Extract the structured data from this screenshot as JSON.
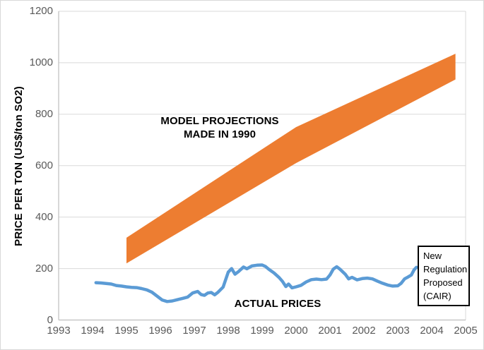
{
  "chart_data": {
    "type": "line",
    "y_axis_title": "PRICE PER TON (US$/ton SO2)",
    "xlim": [
      1993,
      2005
    ],
    "ylim": [
      0,
      1200
    ],
    "x_ticks": [
      1993,
      1994,
      1995,
      1996,
      1997,
      1998,
      1999,
      2000,
      2001,
      2002,
      2003,
      2004,
      2005
    ],
    "y_ticks": [
      0,
      200,
      400,
      600,
      800,
      1000,
      1200
    ],
    "grid": "horizontal",
    "legend": "none",
    "series": [
      {
        "name": "MODEL PROJECTIONS MADE IN 1990",
        "type": "band",
        "color": "#ED7D31",
        "x": [
          1995,
          2000,
          2004.7
        ],
        "upper": [
          320,
          750,
          1035
        ],
        "lower": [
          220,
          610,
          935
        ]
      },
      {
        "name": "ACTUAL PRICES",
        "type": "line",
        "color": "#5B9BD5",
        "stroke_width": 4.5,
        "points": [
          [
            1994.1,
            145
          ],
          [
            1994.25,
            144
          ],
          [
            1994.4,
            142
          ],
          [
            1994.55,
            140
          ],
          [
            1994.7,
            134
          ],
          [
            1994.85,
            132
          ],
          [
            1995.0,
            129
          ],
          [
            1995.15,
            127
          ],
          [
            1995.3,
            126
          ],
          [
            1995.45,
            122
          ],
          [
            1995.6,
            117
          ],
          [
            1995.75,
            108
          ],
          [
            1995.9,
            93
          ],
          [
            1996.05,
            78
          ],
          [
            1996.2,
            72
          ],
          [
            1996.35,
            74
          ],
          [
            1996.5,
            79
          ],
          [
            1996.65,
            84
          ],
          [
            1996.8,
            89
          ],
          [
            1996.95,
            105
          ],
          [
            1997.1,
            111
          ],
          [
            1997.2,
            99
          ],
          [
            1997.3,
            96
          ],
          [
            1997.4,
            105
          ],
          [
            1997.5,
            107
          ],
          [
            1997.6,
            98
          ],
          [
            1997.7,
            108
          ],
          [
            1997.85,
            128
          ],
          [
            1998.0,
            186
          ],
          [
            1998.1,
            200
          ],
          [
            1998.2,
            178
          ],
          [
            1998.3,
            188
          ],
          [
            1998.45,
            206
          ],
          [
            1998.55,
            199
          ],
          [
            1998.7,
            210
          ],
          [
            1998.85,
            213
          ],
          [
            1999.0,
            214
          ],
          [
            1999.1,
            208
          ],
          [
            1999.2,
            197
          ],
          [
            1999.35,
            183
          ],
          [
            1999.5,
            165
          ],
          [
            1999.6,
            150
          ],
          [
            1999.7,
            130
          ],
          [
            1999.78,
            140
          ],
          [
            1999.88,
            125
          ],
          [
            2000.0,
            129
          ],
          [
            2000.15,
            135
          ],
          [
            2000.3,
            148
          ],
          [
            2000.45,
            157
          ],
          [
            2000.6,
            159
          ],
          [
            2000.75,
            157
          ],
          [
            2000.9,
            159
          ],
          [
            2001.0,
            175
          ],
          [
            2001.1,
            198
          ],
          [
            2001.2,
            207
          ],
          [
            2001.3,
            197
          ],
          [
            2001.45,
            178
          ],
          [
            2001.55,
            160
          ],
          [
            2001.65,
            166
          ],
          [
            2001.8,
            156
          ],
          [
            2001.95,
            161
          ],
          [
            2002.1,
            163
          ],
          [
            2002.25,
            160
          ],
          [
            2002.4,
            151
          ],
          [
            2002.55,
            143
          ],
          [
            2002.7,
            136
          ],
          [
            2002.85,
            132
          ],
          [
            2003.0,
            133
          ],
          [
            2003.1,
            143
          ],
          [
            2003.2,
            160
          ],
          [
            2003.3,
            167
          ],
          [
            2003.4,
            175
          ],
          [
            2003.48,
            195
          ],
          [
            2003.55,
            205
          ]
        ]
      }
    ],
    "annotations": {
      "model_projections": {
        "line1": "MODEL PROJECTIONS",
        "line2": "MADE IN 1990"
      },
      "actual_prices": {
        "text": "ACTUAL PRICES"
      },
      "callout": {
        "lines": [
          "New",
          "Regulation",
          "Proposed",
          "(CAIR)"
        ]
      }
    },
    "colors": {
      "band": "#ED7D31",
      "line": "#5B9BD5",
      "gridline": "#D9D9D9",
      "axis_line": "#BFBFBF",
      "tick_label": "#595959",
      "annotation_text": "#000000",
      "background": "#FFFFFF"
    }
  }
}
